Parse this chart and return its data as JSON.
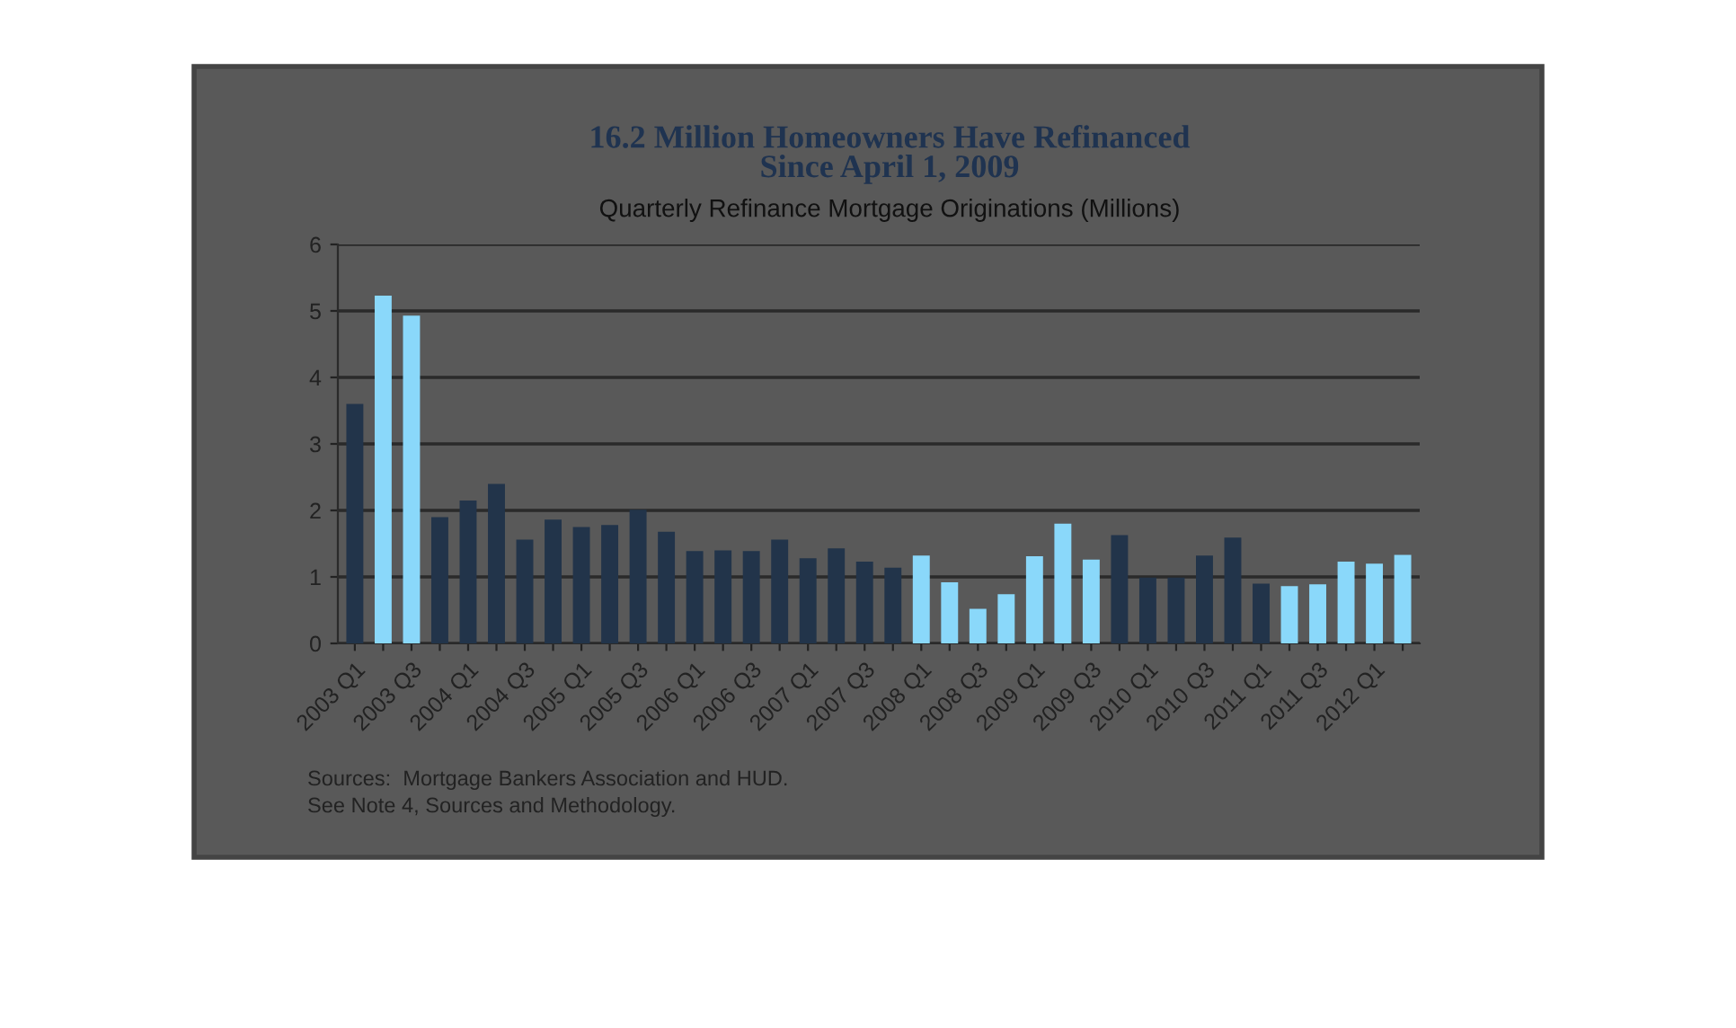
{
  "chart_data": {
    "type": "bar",
    "title": "16.2 Million Homeowners Have Refinanced\nSince April 1, 2009",
    "subtitle": "Quarterly Refinance Mortgage Originations (Millions)",
    "categories": [
      "2003 Q1",
      null,
      "2003 Q3",
      null,
      "2004 Q1",
      null,
      "2004 Q3",
      null,
      "2005 Q1",
      null,
      "2005 Q3",
      null,
      "2006 Q1",
      null,
      "2006 Q3",
      null,
      "2007 Q1",
      null,
      "2007 Q3",
      null,
      "2008 Q1",
      null,
      "2008 Q3",
      null,
      "2009 Q1",
      null,
      "2009 Q3",
      null,
      "2010 Q1",
      null,
      "2010 Q3",
      null,
      "2011 Q1",
      null,
      "2011 Q3",
      null,
      "2012 Q1",
      null
    ],
    "values": [
      3.6,
      5.23,
      4.93,
      1.9,
      2.15,
      2.4,
      1.56,
      1.86,
      1.75,
      1.78,
      2.01,
      1.68,
      1.39,
      1.4,
      1.39,
      1.56,
      1.28,
      1.43,
      1.23,
      1.14,
      1.32,
      0.92,
      0.52,
      0.74,
      1.31,
      1.8,
      1.26,
      1.63,
      0.99,
      0.99,
      1.32,
      1.59,
      0.9,
      0.86,
      0.89,
      1.23,
      1.2,
      1.33
    ],
    "colors": [
      "#22344a",
      "#8ad8fa",
      "#8ad8fa",
      "#22344a",
      "#22344a",
      "#22344a",
      "#22344a",
      "#22344a",
      "#22344a",
      "#22344a",
      "#22344a",
      "#22344a",
      "#22344a",
      "#22344a",
      "#22344a",
      "#22344a",
      "#22344a",
      "#22344a",
      "#22344a",
      "#22344a",
      "#8ad8fa",
      "#8ad8fa",
      "#8ad8fa",
      "#8ad8fa",
      "#8ad8fa",
      "#8ad8fa",
      "#8ad8fa",
      "#22344a",
      "#22344a",
      "#22344a",
      "#22344a",
      "#22344a",
      "#22344a",
      "#8ad8fa",
      "#8ad8fa",
      "#8ad8fa",
      "#8ad8fa",
      "#8ad8fa"
    ],
    "ylim": [
      0,
      6
    ],
    "yticks": [
      0,
      1,
      2,
      3,
      4,
      5,
      6
    ],
    "grid": "y",
    "legend": false,
    "annotations": [
      "Sources:  Mortgage Bankers Association and HUD.",
      "See Note 4, Sources and Methodology."
    ]
  }
}
